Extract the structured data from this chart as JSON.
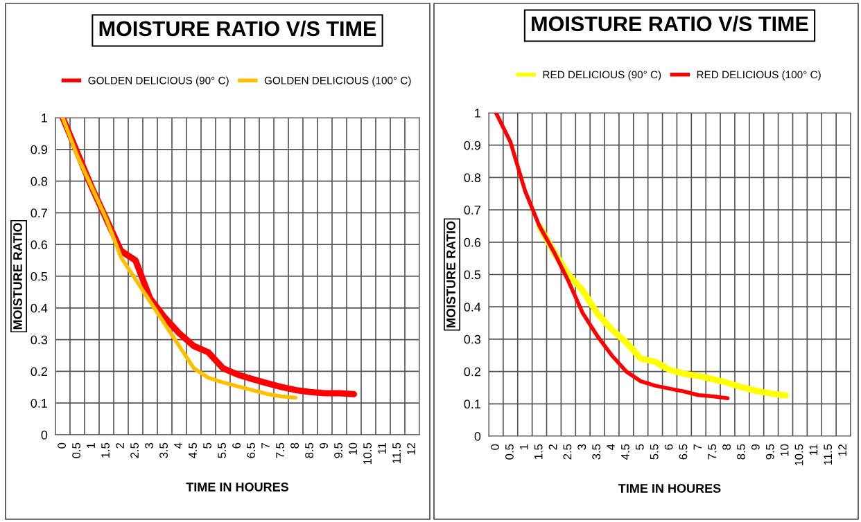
{
  "chart_data": [
    {
      "type": "line",
      "title": "MOISTURE RATIO V/S TIME",
      "xlabel": "TIME IN HOURES",
      "ylabel": "MOISTURE RATIO",
      "categories": [
        "0",
        "0.5",
        "1",
        "1.5",
        "2",
        "2.5",
        "3",
        "3.5",
        "4",
        "4.5",
        "5",
        "5.5",
        "6",
        "6.5",
        "7",
        "7.5",
        "8",
        "8.5",
        "9",
        "9.5",
        "10",
        "10.5",
        "11",
        "11.5",
        "12"
      ],
      "series": [
        {
          "name": "GOLDEN DELICIOUS (90° C)",
          "color": "#ff0000",
          "values": [
            1.0,
            0.89,
            0.78,
            0.68,
            0.58,
            0.55,
            0.43,
            0.37,
            0.32,
            0.28,
            0.26,
            0.21,
            0.19,
            0.176,
            0.163,
            0.151,
            0.141,
            0.135,
            0.131,
            0.131,
            0.128,
            null,
            null,
            null,
            null
          ]
        },
        {
          "name": "GOLDEN DELICIOUS (100° C)",
          "color": "#ffc000",
          "values": [
            1.0,
            0.88,
            0.78,
            0.68,
            0.56,
            0.49,
            0.42,
            0.35,
            0.28,
            0.21,
            0.18,
            0.165,
            0.153,
            0.141,
            0.129,
            0.121,
            0.117,
            null,
            null,
            null,
            null,
            null,
            null,
            null,
            null
          ]
        }
      ],
      "ylim": [
        0,
        1
      ],
      "yticks": [
        0,
        0.1,
        0.2,
        0.3,
        0.4,
        0.5,
        0.6,
        0.7,
        0.8,
        0.9,
        1
      ],
      "grid": true,
      "legend": "top",
      "marker": "none",
      "line_style": "solid"
    },
    {
      "type": "line",
      "title": "MOISTURE RATIO V/S TIME",
      "xlabel": "TIME IN HOURES",
      "ylabel": "MOISTURE RATIO",
      "categories": [
        "0",
        "0.5",
        "1",
        "1.5",
        "2",
        "2.5",
        "3",
        "3.5",
        "4",
        "4.5",
        "5",
        "5.5",
        "6",
        "6.5",
        "7",
        "7.5",
        "8",
        "8.5",
        "9",
        "9.5",
        "10",
        "10.5",
        "11",
        "11.5",
        "12"
      ],
      "series": [
        {
          "name": "RED DELICIOUS (90° C)",
          "color": "#ffff00",
          "values": [
            null,
            null,
            null,
            0.65,
            0.57,
            0.5,
            0.45,
            0.38,
            0.33,
            0.29,
            0.24,
            0.23,
            0.205,
            0.193,
            0.186,
            0.176,
            0.165,
            0.151,
            0.14,
            0.132,
            0.126,
            null,
            null,
            null,
            null
          ]
        },
        {
          "name": "RED DELICIOUS (100° C)",
          "color": "#ff0000",
          "values": [
            1.0,
            0.91,
            0.76,
            0.65,
            0.57,
            0.48,
            0.38,
            0.31,
            0.25,
            0.2,
            0.17,
            0.156,
            0.147,
            0.138,
            0.127,
            0.123,
            0.117,
            null,
            null,
            null,
            null,
            null,
            null,
            null,
            null
          ]
        }
      ],
      "ylim": [
        0,
        1
      ],
      "yticks": [
        0,
        0.1,
        0.2,
        0.3,
        0.4,
        0.5,
        0.6,
        0.7,
        0.8,
        0.9,
        1
      ],
      "grid": true,
      "legend": "top",
      "marker": "none",
      "line_style": "solid"
    }
  ]
}
